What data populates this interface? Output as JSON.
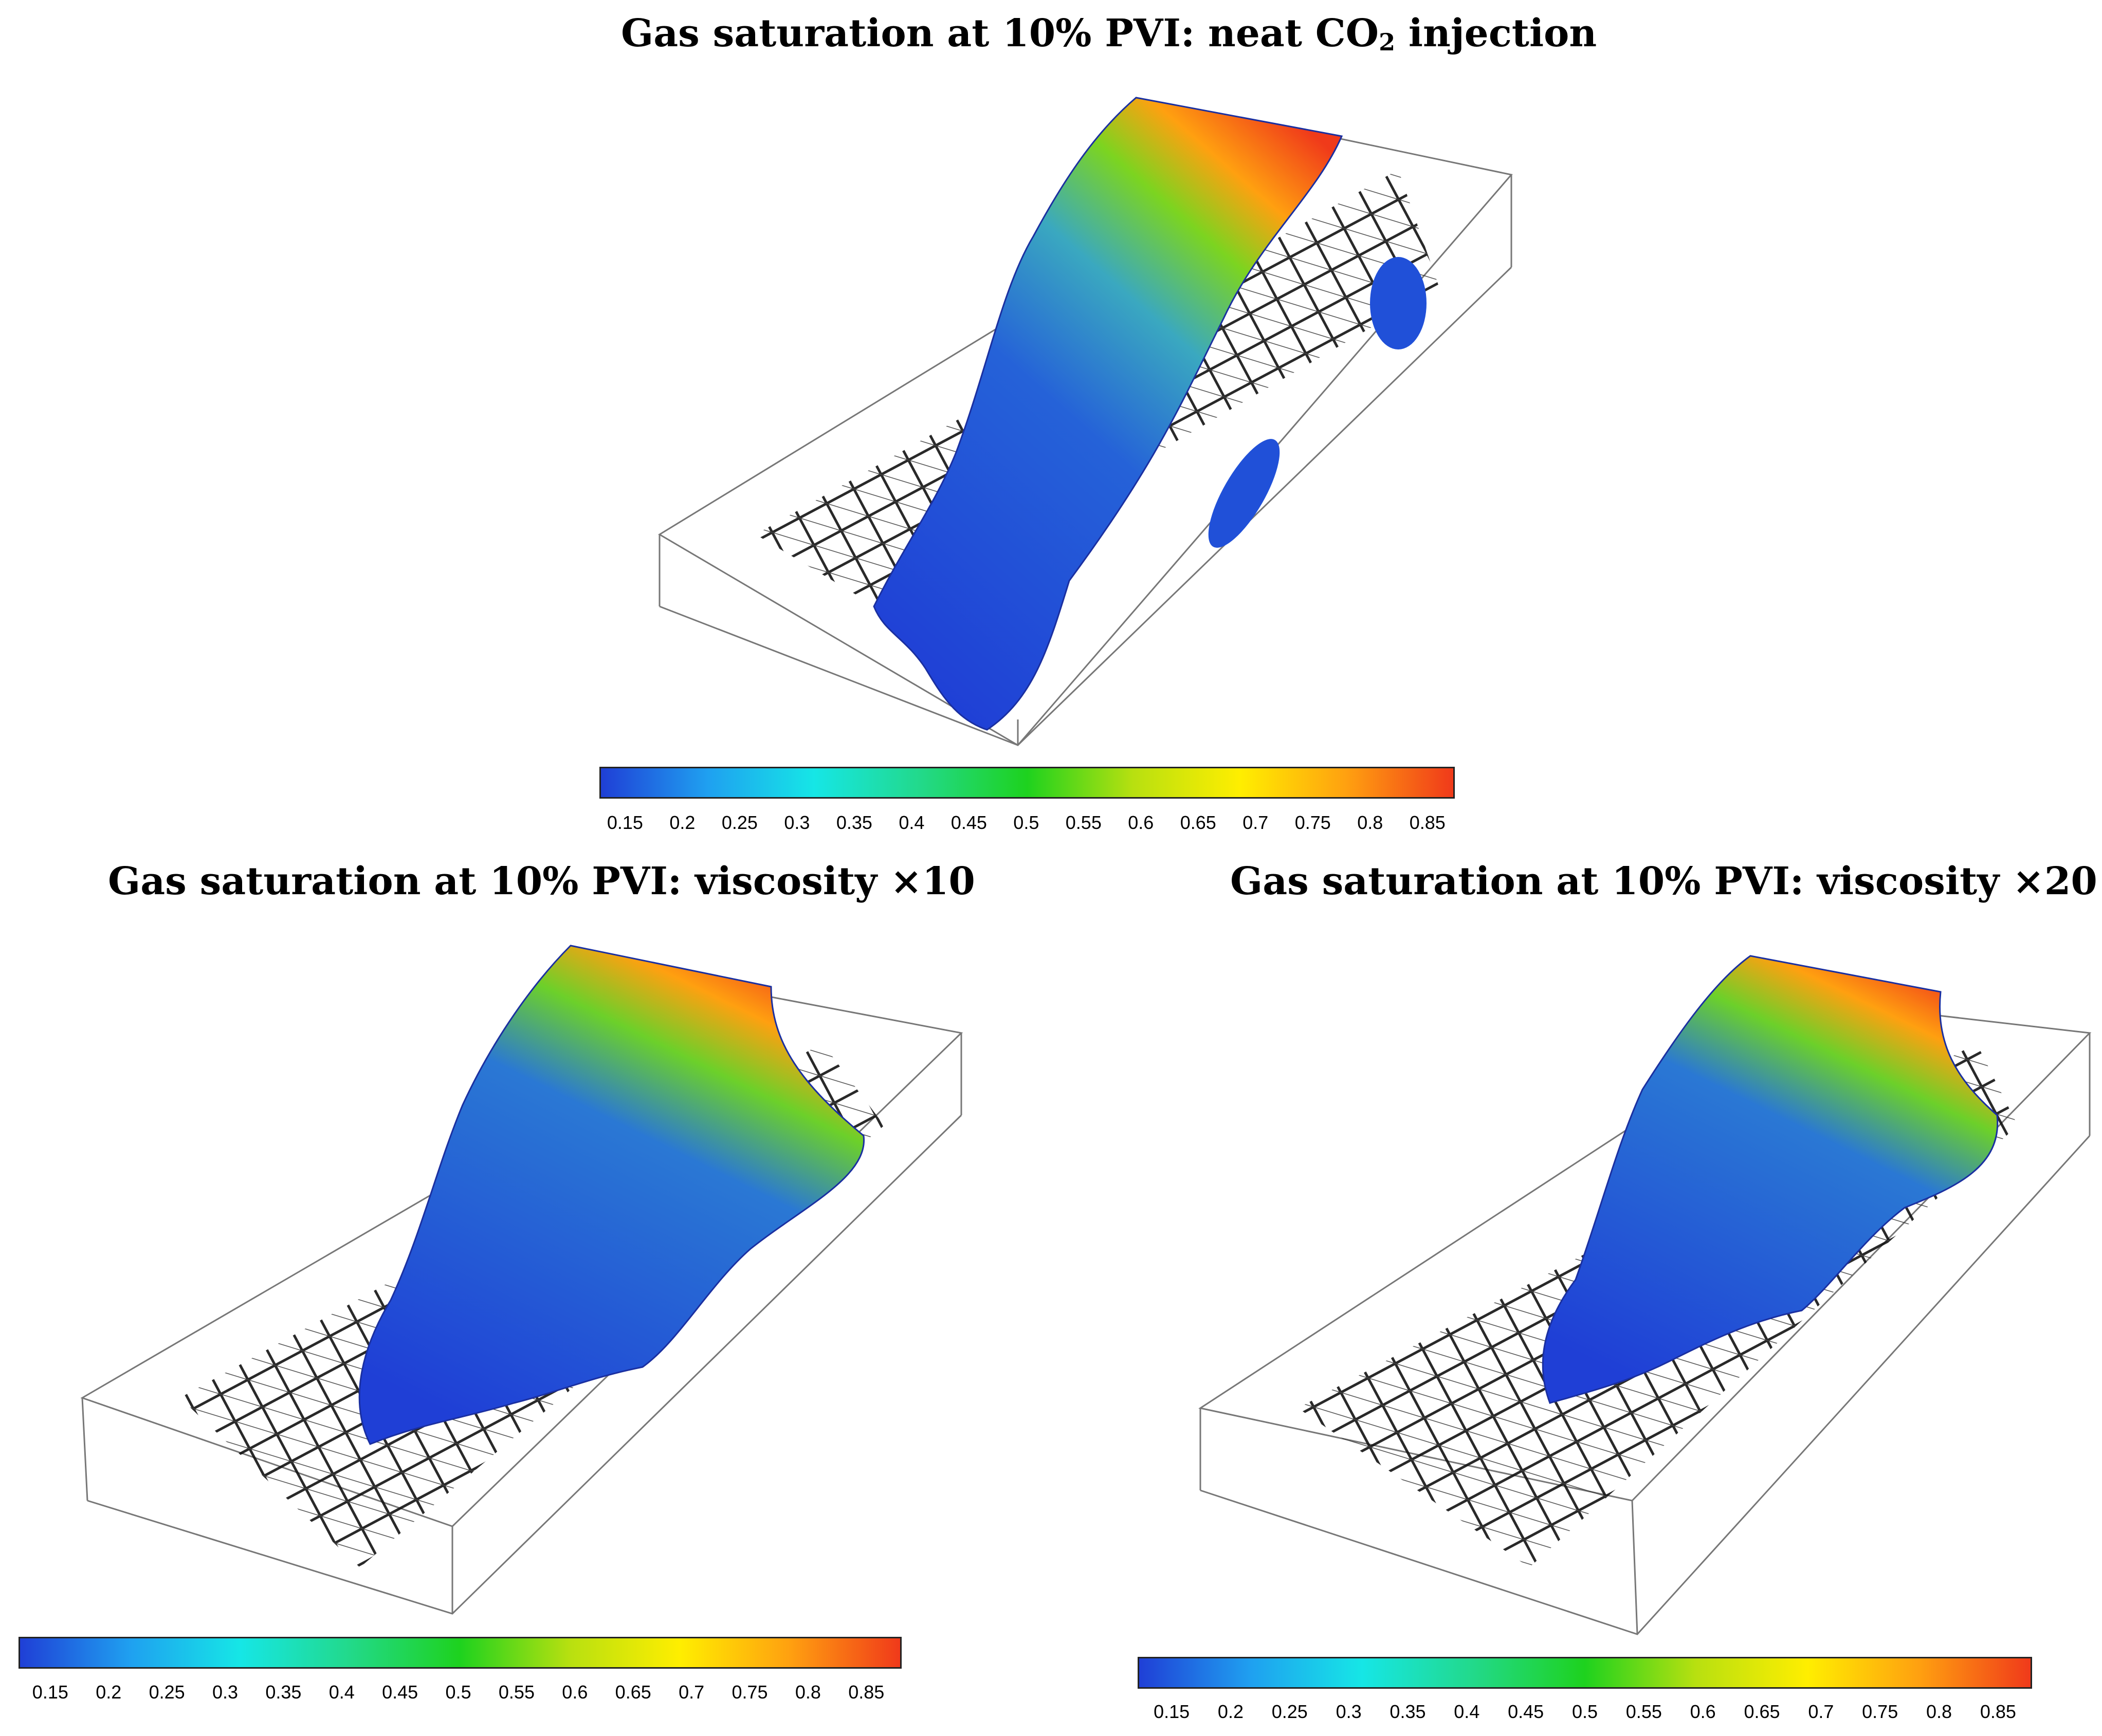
{
  "panels": [
    {
      "title_pre": "Gas saturation at 10% PVI: neat CO",
      "title_sub": "2",
      "title_post": " injection"
    },
    {
      "title_pre": "Gas saturation at 10% PVI: viscosity ×10",
      "title_sub": "",
      "title_post": ""
    },
    {
      "title_pre": "Gas saturation at 10% PVI: viscosity ×20",
      "title_sub": "",
      "title_post": ""
    }
  ],
  "colorbar": {
    "ticks": [
      "0.15",
      "0.2",
      "0.25",
      "0.3",
      "0.35",
      "0.4",
      "0.45",
      "0.5",
      "0.55",
      "0.6",
      "0.65",
      "0.7",
      "0.75",
      "0.8",
      "0.85"
    ],
    "colors": [
      "#1f3fd6",
      "#1fa0f0",
      "#16e6e6",
      "#22d98a",
      "#1ed21e",
      "#b8e010",
      "#ffee00",
      "#ffa010",
      "#f03a1a"
    ]
  },
  "icons": [
    "reservoir-box-outline",
    "well-grid-wireframe",
    "gas-plume-surface"
  ]
}
